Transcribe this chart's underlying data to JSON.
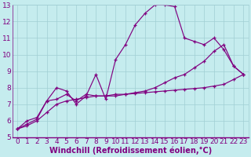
{
  "title": "",
  "xlabel": "Windchill (Refroidissement éolien,°C)",
  "background_color": "#c5ecee",
  "line_color": "#800080",
  "grid_color": "#a0cfd4",
  "xlim": [
    -0.5,
    23.5
  ],
  "ylim": [
    5,
    13
  ],
  "xticks": [
    0,
    1,
    2,
    3,
    4,
    5,
    6,
    7,
    8,
    9,
    10,
    11,
    12,
    13,
    14,
    15,
    16,
    17,
    18,
    19,
    20,
    21,
    22,
    23
  ],
  "yticks": [
    5,
    6,
    7,
    8,
    9,
    10,
    11,
    12,
    13
  ],
  "line1_x": [
    0,
    1,
    2,
    3,
    4,
    5,
    6,
    7,
    8,
    9,
    10,
    11,
    12,
    13,
    14,
    15,
    16,
    17,
    18,
    19,
    20,
    21,
    22,
    23
  ],
  "line1_y": [
    5.5,
    6.0,
    6.2,
    7.2,
    8.0,
    7.8,
    7.0,
    7.5,
    8.8,
    7.3,
    9.7,
    10.6,
    11.8,
    12.5,
    13.0,
    13.0,
    12.9,
    11.0,
    10.8,
    10.6,
    11.0,
    10.3,
    9.3,
    8.8
  ],
  "line2_x": [
    0,
    1,
    2,
    3,
    4,
    5,
    6,
    7,
    8,
    9,
    10,
    11,
    12,
    13,
    14,
    15,
    16,
    17,
    18,
    19,
    20,
    21,
    22,
    23
  ],
  "line2_y": [
    5.5,
    5.8,
    6.1,
    7.2,
    7.3,
    7.6,
    7.2,
    7.6,
    7.5,
    7.5,
    7.6,
    7.6,
    7.7,
    7.8,
    8.0,
    8.3,
    8.6,
    8.8,
    9.2,
    9.6,
    10.2,
    10.6,
    9.3,
    8.8
  ],
  "line3_x": [
    0,
    1,
    2,
    3,
    4,
    5,
    6,
    7,
    8,
    9,
    10,
    11,
    12,
    13,
    14,
    15,
    16,
    17,
    18,
    19,
    20,
    21,
    22,
    23
  ],
  "line3_y": [
    5.5,
    5.7,
    6.0,
    6.5,
    7.0,
    7.2,
    7.3,
    7.4,
    7.5,
    7.5,
    7.5,
    7.6,
    7.65,
    7.7,
    7.75,
    7.8,
    7.85,
    7.9,
    7.95,
    8.0,
    8.1,
    8.2,
    8.5,
    8.8
  ],
  "tick_fontsize": 6.5,
  "xlabel_fontsize": 7,
  "xlabel_fontweight": "bold"
}
